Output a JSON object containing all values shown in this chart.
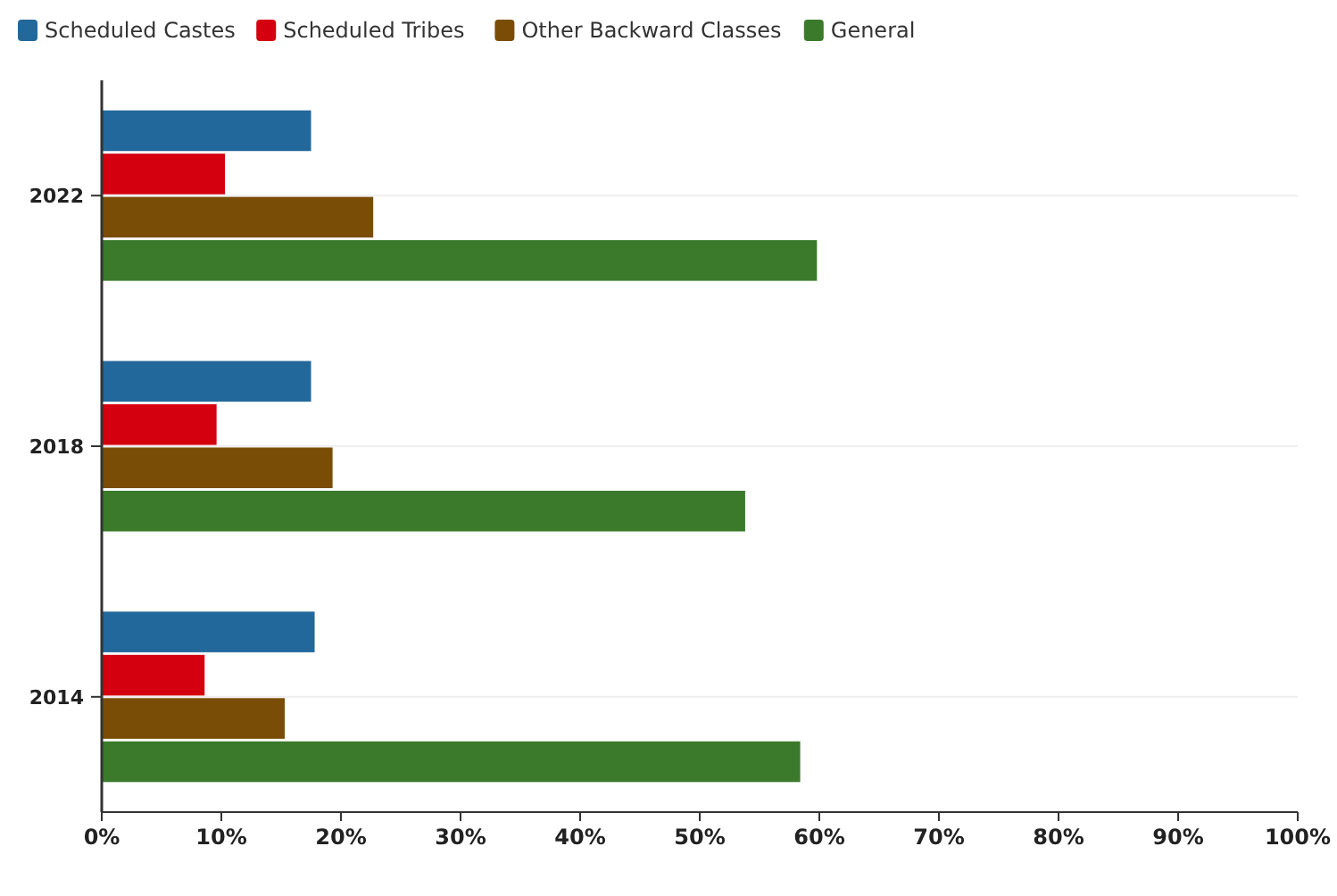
{
  "chart_data": {
    "type": "bar",
    "orientation": "horizontal",
    "categories": [
      "2022",
      "2018",
      "2014"
    ],
    "series": [
      {
        "name": "Scheduled Castes",
        "color": "#23689b",
        "values": [
          17.5,
          17.5,
          17.8
        ]
      },
      {
        "name": "Scheduled Tribes",
        "color": "#d40010",
        "values": [
          10.3,
          9.6,
          8.6
        ]
      },
      {
        "name": "Other Backward Classes",
        "color": "#7a4d06",
        "values": [
          22.7,
          19.3,
          15.3
        ]
      },
      {
        "name": "General",
        "color": "#3a7a2a",
        "values": [
          59.8,
          53.8,
          58.4
        ]
      }
    ],
    "xlim": [
      0,
      100
    ],
    "xticks": [
      {
        "value": 0,
        "label": "0%"
      },
      {
        "value": 10,
        "label": "10%"
      },
      {
        "value": 20,
        "label": "20%"
      },
      {
        "value": 30,
        "label": "30%"
      },
      {
        "value": 40,
        "label": "40%"
      },
      {
        "value": 50,
        "label": "50%"
      },
      {
        "value": 60,
        "label": "60%"
      },
      {
        "value": 70,
        "label": "70%"
      },
      {
        "value": 80,
        "label": "80%"
      },
      {
        "value": 90,
        "label": "90%"
      },
      {
        "value": 100,
        "label": "100%"
      }
    ],
    "grid": "y",
    "legend": "top left"
  }
}
